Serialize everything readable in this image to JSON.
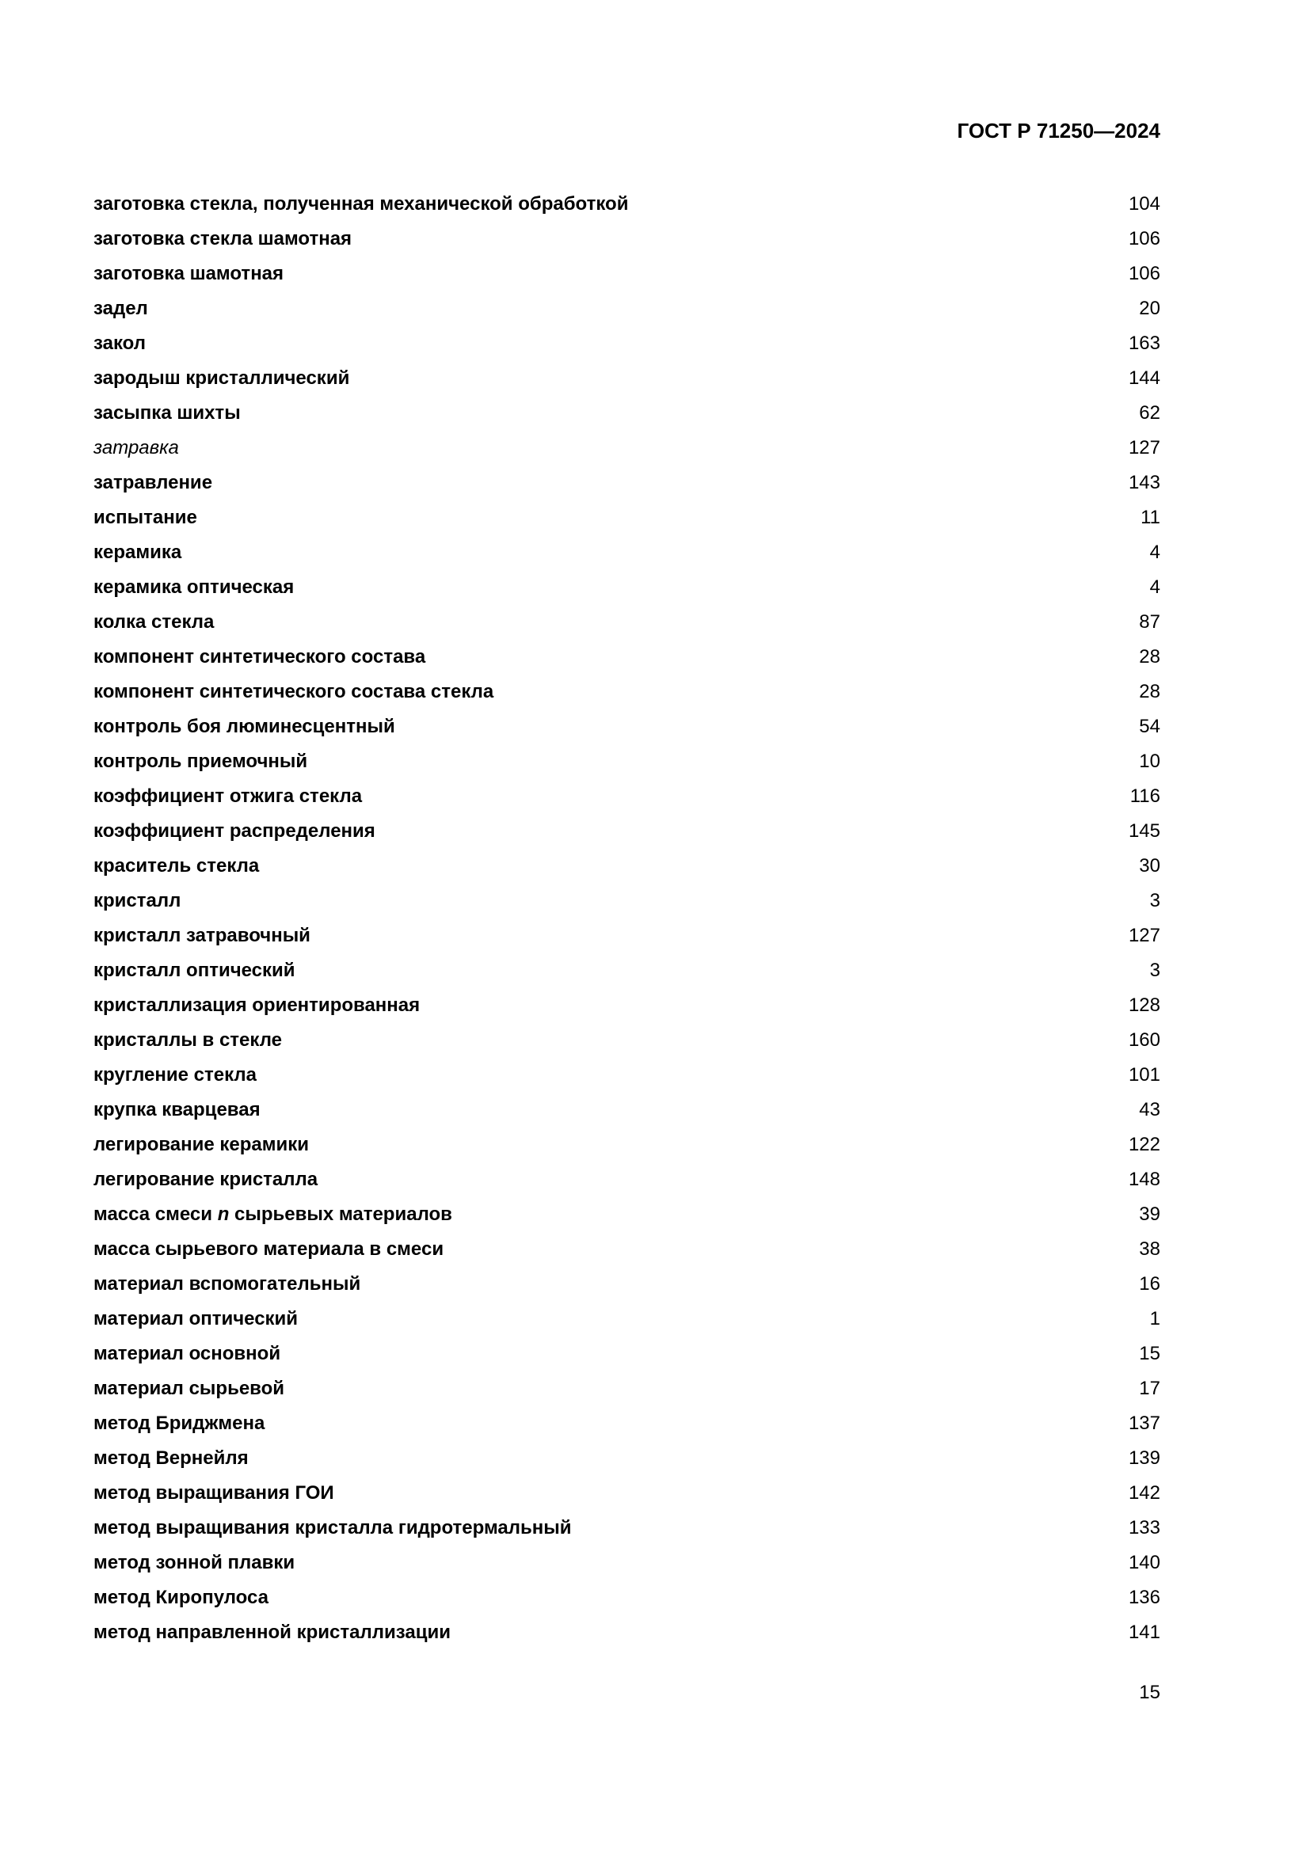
{
  "header": {
    "doc_id": "ГОСТ Р 71250—2024"
  },
  "entries": [
    {
      "term": "заготовка стекла, полученная механической обработкой",
      "ref": "104"
    },
    {
      "term": "заготовка стекла шамотная",
      "ref": "106"
    },
    {
      "term": "заготовка шамотная",
      "ref": "106"
    },
    {
      "term": "задел",
      "ref": "20"
    },
    {
      "term": "закол",
      "ref": "163"
    },
    {
      "term": "зародыш кристаллический",
      "ref": "144"
    },
    {
      "term": "засыпка шихты",
      "ref": "62"
    },
    {
      "term": "затравка",
      "ref": "127",
      "italic": true
    },
    {
      "term": "затравление",
      "ref": "143"
    },
    {
      "term": "испытание",
      "ref": "11"
    },
    {
      "term": "керамика",
      "ref": "4"
    },
    {
      "term": "керамика оптическая",
      "ref": "4"
    },
    {
      "term": "колка стекла",
      "ref": "87"
    },
    {
      "term": "компонент синтетического состава",
      "ref": "28"
    },
    {
      "term": "компонент синтетического состава стекла",
      "ref": "28"
    },
    {
      "term": "контроль боя люминесцентный",
      "ref": "54"
    },
    {
      "term": "контроль приемочный",
      "ref": "10"
    },
    {
      "term": "коэффициент отжига стекла",
      "ref": "116"
    },
    {
      "term": "коэффициент распределения",
      "ref": "145"
    },
    {
      "term": "краситель стекла",
      "ref": "30"
    },
    {
      "term": "кристалл",
      "ref": "3"
    },
    {
      "term": "кристалл затравочный",
      "ref": "127"
    },
    {
      "term": "кристалл оптический",
      "ref": "3"
    },
    {
      "term": "кристаллизация ориентированная",
      "ref": "128"
    },
    {
      "term": "кристаллы в стекле",
      "ref": "160"
    },
    {
      "term": "кругление стекла",
      "ref": "101"
    },
    {
      "term": "крупка кварцевая",
      "ref": "43"
    },
    {
      "term": "легирование керамики",
      "ref": "122"
    },
    {
      "term": "легирование кристалла",
      "ref": "148"
    },
    {
      "term": "масса смеси n сырьевых материалов",
      "term_parts": [
        "масса смеси ",
        "n",
        " сырьевых материалов"
      ],
      "ref": "39"
    },
    {
      "term": "масса сырьевого материала в смеси",
      "ref": "38"
    },
    {
      "term": "материал вспомогательный",
      "ref": "16"
    },
    {
      "term": "материал оптический",
      "ref": "1"
    },
    {
      "term": "материал основной",
      "ref": "15"
    },
    {
      "term": "материал сырьевой",
      "ref": "17"
    },
    {
      "term": "метод Бриджмена",
      "ref": "137"
    },
    {
      "term": "метод Вернейля",
      "ref": "139"
    },
    {
      "term": "метод выращивания ГОИ",
      "ref": "142"
    },
    {
      "term": "метод выращивания кристалла гидротермальный",
      "ref": "133"
    },
    {
      "term": "метод зонной плавки",
      "ref": "140"
    },
    {
      "term": "метод Киропулоса",
      "ref": "136"
    },
    {
      "term": "метод направленной кристаллизации",
      "ref": "141"
    }
  ],
  "footer": {
    "page_number": "15"
  }
}
